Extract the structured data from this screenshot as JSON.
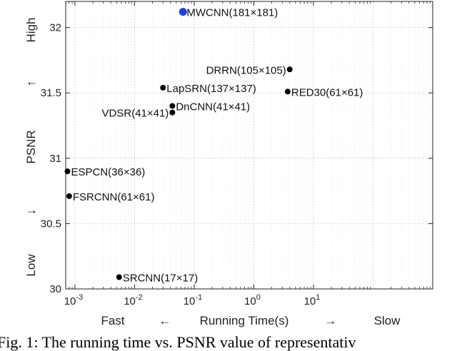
{
  "chart_data": {
    "type": "scatter",
    "x_scale": "log",
    "xlim": [
      0.0007,
      1000
    ],
    "ylim": [
      30,
      32.2
    ],
    "grid": true,
    "x_ticks": [
      {
        "value": 0.001,
        "base": "10",
        "exp": "-3"
      },
      {
        "value": 0.01,
        "base": "10",
        "exp": "-2"
      },
      {
        "value": 0.1,
        "base": "10",
        "exp": "-1"
      },
      {
        "value": 1,
        "base": "10",
        "exp": "0"
      },
      {
        "value": 10,
        "base": "10",
        "exp": "1"
      }
    ],
    "y_ticks": [
      {
        "value": 30,
        "label": "30"
      },
      {
        "value": 30.5,
        "label": "30.5"
      },
      {
        "value": 31,
        "label": "31"
      },
      {
        "value": 31.5,
        "label": "31.5"
      },
      {
        "value": 32,
        "label": "32"
      }
    ],
    "x_axis_text": {
      "left": "Fast",
      "arrow_left": "←",
      "center": "Running Time(s)",
      "arrow_right": "→",
      "right": "Slow"
    },
    "y_axis_text": {
      "bottom": "Low",
      "arrow_down": "↓",
      "center": "PSNR",
      "arrow_up": "↑",
      "top": "High"
    },
    "points": [
      {
        "label": "MWCNN(181×181)",
        "x": 0.065,
        "y": 32.12,
        "color": "#1f3fe0",
        "highlight": true,
        "label_side": "right"
      },
      {
        "label": "DRRN(105×105)",
        "x": 4.0,
        "y": 31.68,
        "color": "#000000",
        "label_side": "left"
      },
      {
        "label": "LapSRN(137×137)",
        "x": 0.03,
        "y": 31.54,
        "color": "#000000",
        "label_side": "right"
      },
      {
        "label": "RED30(61×61)",
        "x": 3.7,
        "y": 31.51,
        "color": "#000000",
        "label_side": "right"
      },
      {
        "label": "DnCNN(41×41)",
        "x": 0.043,
        "y": 31.4,
        "color": "#000000",
        "label_side": "right"
      },
      {
        "label": "VDSR(41×41)",
        "x": 0.043,
        "y": 31.35,
        "color": "#000000",
        "label_side": "left"
      },
      {
        "label": "ESPCN(36×36)",
        "x": 0.00075,
        "y": 30.9,
        "color": "#000000",
        "label_side": "right"
      },
      {
        "label": "FSRCNN(61×61)",
        "x": 0.0008,
        "y": 30.71,
        "color": "#000000",
        "label_side": "right"
      },
      {
        "label": "SRCNN(17×17)",
        "x": 0.0055,
        "y": 30.09,
        "color": "#000000",
        "label_side": "right"
      }
    ]
  },
  "caption": "Fig. 1: The running time vs. PSNR value of representativ"
}
